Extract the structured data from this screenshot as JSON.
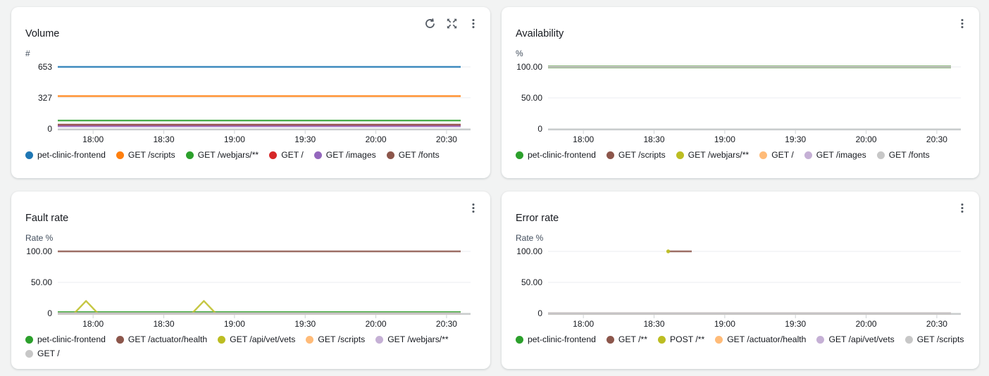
{
  "colors": {
    "page_bg": "#f2f3f3",
    "card_bg": "#ffffff",
    "icon": "#545b64",
    "tick_text": "#16191f",
    "unit_text": "#414d5c",
    "grid_line": "#ebeef0",
    "axis_line": "#c9cccd",
    "tick_mark": "#cfd3d5"
  },
  "x_axis": {
    "x_max": 171,
    "tick_minutes": [
      15,
      45,
      75,
      105,
      135,
      165
    ],
    "tick_labels": [
      "18:00",
      "18:30",
      "19:00",
      "19:30",
      "20:00",
      "20:30"
    ]
  },
  "panels": [
    {
      "id": "volume",
      "title": "Volume",
      "unit": "#",
      "actions": [
        "refresh",
        "expand",
        "menu"
      ],
      "chart_data": {
        "type": "line",
        "ylabel": "#",
        "ylim": [
          0,
          653
        ],
        "y_ticks": [
          {
            "v": 653,
            "label": "653"
          },
          {
            "v": 327,
            "label": "327"
          },
          {
            "v": 0,
            "label": "0"
          }
        ],
        "series": [
          {
            "name": "pet-clinic-frontend",
            "color": "#1f77b4",
            "points": [
              [
                0,
                653
              ],
              [
                171,
                653
              ]
            ]
          },
          {
            "name": "GET /scripts",
            "color": "#ff7f0e",
            "points": [
              [
                0,
                345
              ],
              [
                171,
                345
              ]
            ]
          },
          {
            "name": "GET /webjars/**",
            "color": "#2ca02c",
            "points": [
              [
                0,
                88
              ],
              [
                171,
                88
              ]
            ]
          },
          {
            "name": "GET /",
            "color": "#d62728",
            "points": [
              [
                0,
                38
              ],
              [
                171,
                38
              ]
            ]
          },
          {
            "name": "GET /images",
            "color": "#9467bd",
            "points": [
              [
                0,
                27
              ],
              [
                171,
                27
              ]
            ]
          },
          {
            "name": "GET /fonts",
            "color": "#8c564b",
            "points": [
              [
                0,
                45
              ],
              [
                171,
                45
              ]
            ]
          }
        ]
      }
    },
    {
      "id": "availability",
      "title": "Availability",
      "unit": "%",
      "actions": [
        "menu"
      ],
      "chart_data": {
        "type": "line",
        "ylabel": "%",
        "ylim": [
          0,
          100
        ],
        "y_ticks": [
          {
            "v": 100,
            "label": "100.00"
          },
          {
            "v": 50,
            "label": "50.00"
          },
          {
            "v": 0,
            "label": "0"
          }
        ],
        "series": [
          {
            "name": "pet-clinic-frontend",
            "color": "#2ca02c",
            "width": 4,
            "points": [
              [
                0,
                100
              ],
              [
                171,
                100
              ]
            ]
          },
          {
            "name": "GET /scripts",
            "color": "#8c564b",
            "points": [
              [
                0,
                100
              ],
              [
                171,
                100
              ]
            ]
          },
          {
            "name": "GET /webjars/**",
            "color": "#bcbd22",
            "points": [
              [
                0,
                100
              ],
              [
                171,
                100
              ]
            ]
          },
          {
            "name": "GET /",
            "color": "#ffbb78",
            "points": [
              [
                0,
                100
              ],
              [
                171,
                100
              ]
            ]
          },
          {
            "name": "GET /images",
            "color": "#c5b0d5",
            "points": [
              [
                0,
                100
              ],
              [
                171,
                100
              ]
            ]
          },
          {
            "name": "GET /fonts",
            "color": "#c7c7c7",
            "points": [
              [
                0,
                100
              ],
              [
                171,
                100
              ]
            ]
          }
        ]
      }
    },
    {
      "id": "fault-rate",
      "title": "Fault rate",
      "unit": "Rate %",
      "actions": [
        "menu"
      ],
      "chart_data": {
        "type": "line",
        "ylabel": "Rate %",
        "ylim": [
          0,
          100
        ],
        "y_ticks": [
          {
            "v": 100,
            "label": "100.00"
          },
          {
            "v": 50,
            "label": "50.00"
          },
          {
            "v": 0,
            "label": "0"
          }
        ],
        "series": [
          {
            "name": "pet-clinic-frontend",
            "color": "#2ca02c",
            "points": [
              [
                0,
                2
              ],
              [
                171,
                2
              ]
            ]
          },
          {
            "name": "GET /actuator/health",
            "color": "#8c564b",
            "points": [
              [
                0,
                100
              ],
              [
                171,
                100
              ]
            ]
          },
          {
            "name": "GET /api/vet/vets",
            "color": "#bcbd22",
            "points": [
              [
                0,
                0
              ],
              [
                7,
                0
              ],
              [
                12,
                20
              ],
              [
                17,
                0
              ],
              [
                57,
                0
              ],
              [
                62,
                20
              ],
              [
                67,
                0
              ],
              [
                171,
                0
              ]
            ]
          },
          {
            "name": "GET /scripts",
            "color": "#ffbb78",
            "points": [
              [
                0,
                0
              ],
              [
                171,
                0
              ]
            ]
          },
          {
            "name": "GET /webjars/**",
            "color": "#c5b0d5",
            "points": [
              [
                0,
                0
              ],
              [
                171,
                0
              ]
            ]
          },
          {
            "name": "GET /",
            "color": "#c7c7c7",
            "points": [
              [
                0,
                0
              ],
              [
                171,
                0
              ]
            ]
          }
        ]
      }
    },
    {
      "id": "error-rate",
      "title": "Error rate",
      "unit": "Rate %",
      "actions": [
        "menu"
      ],
      "chart_data": {
        "type": "line",
        "ylabel": "Rate %",
        "ylim": [
          0,
          100
        ],
        "y_ticks": [
          {
            "v": 100,
            "label": "100.00"
          },
          {
            "v": 50,
            "label": "50.00"
          },
          {
            "v": 0,
            "label": "0"
          }
        ],
        "series": [
          {
            "name": "pet-clinic-frontend",
            "color": "#2ca02c",
            "points": [
              [
                0,
                0
              ],
              [
                171,
                0
              ]
            ]
          },
          {
            "name": "GET /**",
            "color": "#8c564b",
            "points": [
              [
                51,
                100
              ],
              [
                61,
                100
              ]
            ]
          },
          {
            "name": "POST /**",
            "color": "#bcbd22",
            "points": [
              [
                51,
                100
              ]
            ]
          },
          {
            "name": "GET /actuator/health",
            "color": "#ffbb78",
            "points": [
              [
                0,
                0
              ],
              [
                171,
                0
              ]
            ]
          },
          {
            "name": "GET /api/vet/vets",
            "color": "#c5b0d5",
            "points": [
              [
                0,
                0
              ],
              [
                171,
                0
              ]
            ]
          },
          {
            "name": "GET /scripts",
            "color": "#c7c7c7",
            "points": [
              [
                0,
                0
              ],
              [
                171,
                0
              ]
            ]
          }
        ]
      }
    }
  ]
}
